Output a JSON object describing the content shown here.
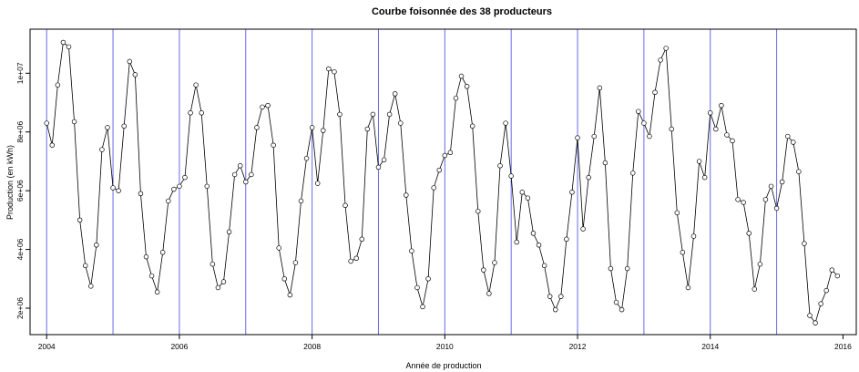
{
  "chart_data": {
    "type": "line",
    "title": "Courbe foisonnée des 38 producteurs",
    "xlabel": "Année de production",
    "ylabel": "Production (en kWh)",
    "xlim": [
      2003.75,
      2016.2
    ],
    "ylim": [
      1100000,
      11500000
    ],
    "x_ticks": [
      2004,
      2006,
      2008,
      2010,
      2012,
      2014,
      2016
    ],
    "x_tick_labels": [
      "2004",
      "2006",
      "2008",
      "2010",
      "2012",
      "2014",
      "2016"
    ],
    "y_ticks": [
      2000000,
      4000000,
      6000000,
      8000000,
      10000000
    ],
    "y_tick_labels": [
      "2e+06",
      "4e+06",
      "6e+06",
      "8e+06",
      "1e+07"
    ],
    "vertical_lines_at": [
      2004,
      2005,
      2006,
      2007,
      2008,
      2009,
      2010,
      2011,
      2012,
      2013,
      2014,
      2015
    ],
    "vertical_line_color": "#6a6ae8",
    "marker": "open-circle",
    "line_color": "#000000",
    "series": [
      {
        "start_year": 2004,
        "step": "monthly",
        "values": [
          8300000,
          7550000,
          9600000,
          11050000,
          10900000,
          8350000,
          5000000,
          3450000,
          2750000,
          4150000,
          7400000,
          8150000,
          6100000,
          6000000,
          8200000,
          10400000,
          9950000,
          5900000,
          3750000,
          3100000,
          2550000,
          3900000,
          5650000,
          6050000,
          6150000,
          6450000,
          8650000,
          9600000,
          8650000,
          6150000,
          3500000,
          2700000,
          2900000,
          4600000,
          6550000,
          6850000,
          6300000,
          6550000,
          8150000,
          8850000,
          8900000,
          7550000,
          4050000,
          3000000,
          2450000,
          3550000,
          5650000,
          7100000,
          8150000,
          6250000,
          8050000,
          10150000,
          10050000,
          8600000,
          5500000,
          3600000,
          3700000,
          4350000,
          8100000,
          8600000,
          6800000,
          7050000,
          8600000,
          9300000,
          8300000,
          5850000,
          3950000,
          2700000,
          2050000,
          3000000,
          6100000,
          6700000,
          7200000,
          7300000,
          9150000,
          9900000,
          9550000,
          8200000,
          5300000,
          3300000,
          2500000,
          3550000,
          6850000,
          8300000,
          6500000,
          4250000,
          5950000,
          5750000,
          4550000,
          4150000,
          3450000,
          2400000,
          1950000,
          2400000,
          4350000,
          5950000,
          7800000,
          4700000,
          6450000,
          7850000,
          9500000,
          6950000,
          3350000,
          2200000,
          1950000,
          3350000,
          6600000,
          8700000,
          8300000,
          7850000,
          9350000,
          10450000,
          10850000,
          8100000,
          5250000,
          3900000,
          2700000,
          4450000,
          7000000,
          6450000,
          8650000,
          8100000,
          8900000,
          7900000,
          7700000,
          5700000,
          5600000,
          4550000,
          2650000,
          3500000,
          5700000,
          6150000,
          5400000,
          6300000,
          7850000,
          7650000,
          6650000,
          4200000,
          1750000,
          1500000,
          2150000,
          2600000,
          3300000,
          3100000
        ]
      }
    ]
  }
}
